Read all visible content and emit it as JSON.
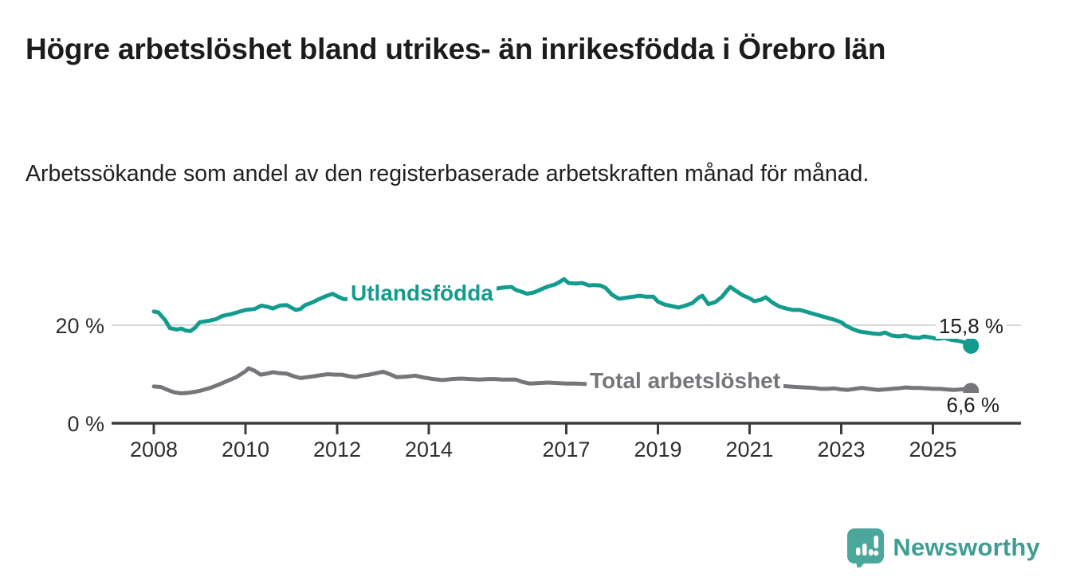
{
  "header": {
    "title": "Högre arbetslöshet bland utrikes- än inrikesfödda i Örebro län",
    "subtitle": "Arbetssökande som andel av den registerbaserade arbetskraften månad för månad."
  },
  "branding": {
    "logo_text": "Newsworthy",
    "logo_text_color": "#3f9e93",
    "logo_icon_color": "#4ba79b"
  },
  "colors": {
    "accent_teal": "#139c8e",
    "neutral_gray": "#76767a",
    "axis": "#3c3c3c",
    "gridline": "#d9d9d9",
    "text": "#1d1d1d"
  },
  "chart_data": {
    "type": "line",
    "unit": "%",
    "x_axis": {
      "ticks": [
        2008,
        2010,
        2012,
        2014,
        2017,
        2019,
        2021,
        2023,
        2025
      ],
      "range": [
        2007.9,
        2026.1
      ]
    },
    "y_axis": {
      "ticks": [
        {
          "value": 0,
          "label": "0 %"
        },
        {
          "value": 20,
          "label": "20 %"
        }
      ],
      "range": [
        0,
        32
      ],
      "gridlines": [
        20
      ]
    },
    "series": [
      {
        "name": "Utlandsfödda",
        "color": "#139c8e",
        "end_label": "15,8 %",
        "end_value": 15.8,
        "points": [
          [
            2008.0,
            22.8
          ],
          [
            2008.1,
            22.6
          ],
          [
            2008.25,
            21.0
          ],
          [
            2008.35,
            19.4
          ],
          [
            2008.5,
            19.1
          ],
          [
            2008.6,
            19.3
          ],
          [
            2008.7,
            18.9
          ],
          [
            2008.8,
            18.8
          ],
          [
            2008.9,
            19.5
          ],
          [
            2009.0,
            20.6
          ],
          [
            2009.2,
            20.9
          ],
          [
            2009.35,
            21.2
          ],
          [
            2009.5,
            21.9
          ],
          [
            2009.7,
            22.3
          ],
          [
            2009.85,
            22.7
          ],
          [
            2010.0,
            23.1
          ],
          [
            2010.2,
            23.3
          ],
          [
            2010.35,
            24.0
          ],
          [
            2010.5,
            23.7
          ],
          [
            2010.6,
            23.4
          ],
          [
            2010.75,
            24.0
          ],
          [
            2010.9,
            24.1
          ],
          [
            2011.0,
            23.6
          ],
          [
            2011.1,
            23.1
          ],
          [
            2011.2,
            23.3
          ],
          [
            2011.3,
            24.1
          ],
          [
            2011.45,
            24.6
          ],
          [
            2011.6,
            25.3
          ],
          [
            2011.75,
            25.9
          ],
          [
            2011.9,
            26.4
          ],
          [
            2012.0,
            25.9
          ],
          [
            2012.15,
            25.3
          ],
          [
            2012.3,
            25.4
          ],
          [
            2012.5,
            25.7
          ],
          [
            2012.7,
            25.9
          ],
          [
            2012.9,
            26.1
          ],
          [
            2013.1,
            26.3
          ],
          [
            2013.3,
            26.2
          ],
          [
            2013.5,
            26.4
          ],
          [
            2013.7,
            26.6
          ],
          [
            2013.9,
            26.7
          ],
          [
            2014.1,
            26.8
          ],
          [
            2014.3,
            26.9
          ],
          [
            2014.5,
            27.0
          ],
          [
            2014.7,
            27.2
          ],
          [
            2014.9,
            27.1
          ],
          [
            2015.1,
            27.3
          ],
          [
            2015.3,
            27.4
          ],
          [
            2015.5,
            27.5
          ],
          [
            2015.65,
            27.7
          ],
          [
            2015.8,
            27.8
          ],
          [
            2015.9,
            27.2
          ],
          [
            2016.0,
            26.9
          ],
          [
            2016.15,
            26.4
          ],
          [
            2016.3,
            26.7
          ],
          [
            2016.45,
            27.3
          ],
          [
            2016.6,
            27.9
          ],
          [
            2016.75,
            28.3
          ],
          [
            2016.85,
            28.8
          ],
          [
            2016.95,
            29.4
          ],
          [
            2017.05,
            28.6
          ],
          [
            2017.2,
            28.5
          ],
          [
            2017.35,
            28.6
          ],
          [
            2017.5,
            28.1
          ],
          [
            2017.6,
            28.2
          ],
          [
            2017.75,
            28.1
          ],
          [
            2017.86,
            27.6
          ],
          [
            2018.0,
            26.2
          ],
          [
            2018.15,
            25.4
          ],
          [
            2018.3,
            25.6
          ],
          [
            2018.45,
            25.8
          ],
          [
            2018.6,
            26.0
          ],
          [
            2018.75,
            25.8
          ],
          [
            2018.9,
            25.8
          ],
          [
            2019.0,
            24.8
          ],
          [
            2019.15,
            24.2
          ],
          [
            2019.3,
            23.9
          ],
          [
            2019.45,
            23.6
          ],
          [
            2019.6,
            24.0
          ],
          [
            2019.75,
            24.5
          ],
          [
            2019.9,
            25.7
          ],
          [
            2019.97,
            26.0
          ],
          [
            2020.1,
            24.3
          ],
          [
            2020.25,
            24.7
          ],
          [
            2020.4,
            25.8
          ],
          [
            2020.5,
            27.0
          ],
          [
            2020.58,
            27.8
          ],
          [
            2020.7,
            27.0
          ],
          [
            2020.85,
            26.1
          ],
          [
            2021.0,
            25.5
          ],
          [
            2021.1,
            24.9
          ],
          [
            2021.25,
            25.2
          ],
          [
            2021.35,
            25.7
          ],
          [
            2021.5,
            24.6
          ],
          [
            2021.65,
            23.8
          ],
          [
            2021.8,
            23.4
          ],
          [
            2021.95,
            23.1
          ],
          [
            2022.1,
            23.1
          ],
          [
            2022.25,
            22.7
          ],
          [
            2022.4,
            22.3
          ],
          [
            2022.55,
            21.9
          ],
          [
            2022.7,
            21.5
          ],
          [
            2022.85,
            21.1
          ],
          [
            2023.0,
            20.6
          ],
          [
            2023.1,
            19.9
          ],
          [
            2023.25,
            19.2
          ],
          [
            2023.4,
            18.7
          ],
          [
            2023.55,
            18.5
          ],
          [
            2023.7,
            18.3
          ],
          [
            2023.85,
            18.2
          ],
          [
            2023.95,
            18.5
          ],
          [
            2024.1,
            17.9
          ],
          [
            2024.25,
            17.7
          ],
          [
            2024.4,
            17.9
          ],
          [
            2024.55,
            17.5
          ],
          [
            2024.7,
            17.4
          ],
          [
            2024.8,
            17.7
          ],
          [
            2024.95,
            17.5
          ],
          [
            2025.1,
            17.2
          ],
          [
            2025.25,
            17.4
          ],
          [
            2025.4,
            17.0
          ],
          [
            2025.55,
            16.8
          ],
          [
            2025.65,
            16.6
          ],
          [
            2025.75,
            16.1
          ],
          [
            2025.83,
            15.8
          ]
        ]
      },
      {
        "name": "Total arbetslöshet",
        "color": "#76767a",
        "end_label": "6,6 %",
        "end_value": 6.6,
        "points": [
          [
            2008.0,
            7.5
          ],
          [
            2008.15,
            7.4
          ],
          [
            2008.3,
            6.8
          ],
          [
            2008.45,
            6.3
          ],
          [
            2008.6,
            6.1
          ],
          [
            2008.75,
            6.2
          ],
          [
            2008.9,
            6.4
          ],
          [
            2009.0,
            6.6
          ],
          [
            2009.2,
            7.1
          ],
          [
            2009.4,
            7.8
          ],
          [
            2009.6,
            8.6
          ],
          [
            2009.8,
            9.4
          ],
          [
            2010.0,
            10.6
          ],
          [
            2010.07,
            11.2
          ],
          [
            2010.2,
            10.7
          ],
          [
            2010.33,
            9.9
          ],
          [
            2010.45,
            10.1
          ],
          [
            2010.6,
            10.4
          ],
          [
            2010.75,
            10.2
          ],
          [
            2010.9,
            10.1
          ],
          [
            2011.05,
            9.6
          ],
          [
            2011.2,
            9.2
          ],
          [
            2011.35,
            9.4
          ],
          [
            2011.5,
            9.6
          ],
          [
            2011.65,
            9.8
          ],
          [
            2011.8,
            10.0
          ],
          [
            2011.95,
            9.9
          ],
          [
            2012.1,
            9.9
          ],
          [
            2012.25,
            9.6
          ],
          [
            2012.4,
            9.4
          ],
          [
            2012.55,
            9.7
          ],
          [
            2012.7,
            9.9
          ],
          [
            2012.85,
            10.2
          ],
          [
            2013.0,
            10.5
          ],
          [
            2013.15,
            10.0
          ],
          [
            2013.3,
            9.4
          ],
          [
            2013.5,
            9.5
          ],
          [
            2013.7,
            9.7
          ],
          [
            2013.9,
            9.3
          ],
          [
            2014.1,
            9.0
          ],
          [
            2014.3,
            8.8
          ],
          [
            2014.5,
            9.0
          ],
          [
            2014.7,
            9.1
          ],
          [
            2014.9,
            9.0
          ],
          [
            2015.1,
            8.9
          ],
          [
            2015.3,
            9.0
          ],
          [
            2015.45,
            9.0
          ],
          [
            2015.6,
            8.9
          ],
          [
            2015.75,
            8.9
          ],
          [
            2015.9,
            8.9
          ],
          [
            2016.05,
            8.4
          ],
          [
            2016.2,
            8.1
          ],
          [
            2016.4,
            8.2
          ],
          [
            2016.6,
            8.3
          ],
          [
            2016.8,
            8.2
          ],
          [
            2017.0,
            8.1
          ],
          [
            2017.2,
            8.1
          ],
          [
            2017.4,
            8.0
          ],
          [
            2017.55,
            7.9
          ],
          [
            2017.7,
            7.8
          ],
          [
            2017.9,
            7.7
          ],
          [
            2018.1,
            7.6
          ],
          [
            2018.4,
            7.5
          ],
          [
            2018.7,
            7.4
          ],
          [
            2019.0,
            7.3
          ],
          [
            2019.3,
            7.2
          ],
          [
            2019.6,
            7.3
          ],
          [
            2019.9,
            7.5
          ],
          [
            2020.2,
            8.3
          ],
          [
            2020.5,
            8.9
          ],
          [
            2020.8,
            8.7
          ],
          [
            2021.1,
            8.3
          ],
          [
            2021.4,
            7.9
          ],
          [
            2021.7,
            7.6
          ],
          [
            2022.0,
            7.4
          ],
          [
            2022.2,
            7.3
          ],
          [
            2022.4,
            7.2
          ],
          [
            2022.55,
            7.0
          ],
          [
            2022.7,
            7.0
          ],
          [
            2022.85,
            7.1
          ],
          [
            2023.0,
            6.9
          ],
          [
            2023.15,
            6.8
          ],
          [
            2023.3,
            7.0
          ],
          [
            2023.45,
            7.2
          ],
          [
            2023.6,
            7.0
          ],
          [
            2023.8,
            6.8
          ],
          [
            2023.95,
            6.9
          ],
          [
            2024.1,
            7.0
          ],
          [
            2024.25,
            7.1
          ],
          [
            2024.4,
            7.3
          ],
          [
            2024.55,
            7.2
          ],
          [
            2024.7,
            7.2
          ],
          [
            2024.85,
            7.1
          ],
          [
            2025.0,
            7.0
          ],
          [
            2025.15,
            7.0
          ],
          [
            2025.3,
            6.9
          ],
          [
            2025.45,
            6.8
          ],
          [
            2025.6,
            6.9
          ],
          [
            2025.73,
            7.0
          ],
          [
            2025.83,
            6.6
          ]
        ]
      }
    ]
  }
}
